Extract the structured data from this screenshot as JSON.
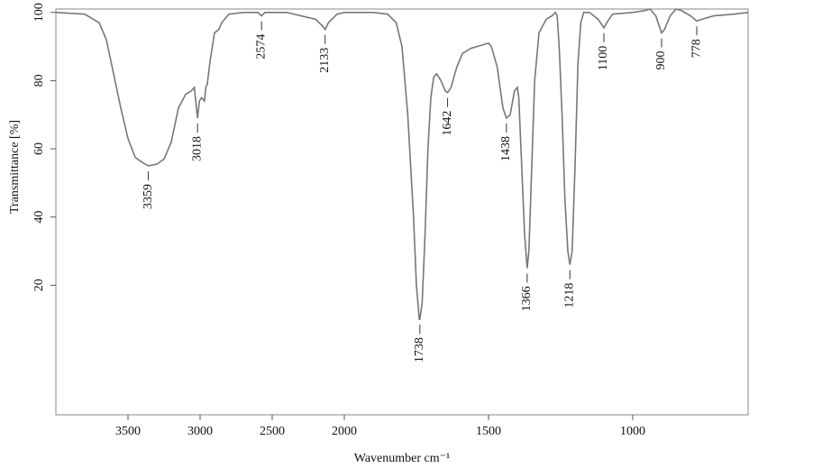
{
  "chart_data": {
    "type": "line",
    "xlabel": "Wavenumber cm⁻¹",
    "ylabel": "Transmittance [%]",
    "xlim": [
      4000,
      600
    ],
    "xscale": {
      "break": 2000,
      "factor_below": 2
    },
    "xticks": [
      3500,
      3000,
      2500,
      2000,
      1500,
      1000
    ],
    "ylim": [
      -18,
      101
    ],
    "yticks": [
      20,
      40,
      60,
      80,
      100
    ],
    "series": [
      {
        "color": "#777777",
        "x": [
          4000,
          3800,
          3700,
          3650,
          3600,
          3550,
          3500,
          3450,
          3400,
          3359,
          3300,
          3250,
          3200,
          3150,
          3100,
          3060,
          3040,
          3030,
          3018,
          3005,
          2990,
          2970,
          2960,
          2950,
          2930,
          2900,
          2870,
          2850,
          2800,
          2700,
          2600,
          2574,
          2550,
          2400,
          2300,
          2200,
          2150,
          2133,
          2110,
          2050,
          2000,
          1900,
          1850,
          1820,
          1800,
          1780,
          1760,
          1750,
          1740,
          1738,
          1730,
          1720,
          1710,
          1700,
          1690,
          1680,
          1665,
          1650,
          1642,
          1630,
          1610,
          1590,
          1560,
          1520,
          1500,
          1490,
          1470,
          1450,
          1438,
          1425,
          1410,
          1400,
          1395,
          1385,
          1375,
          1366,
          1360,
          1350,
          1340,
          1325,
          1300,
          1280,
          1268,
          1262,
          1255,
          1245,
          1235,
          1225,
          1218,
          1210,
          1200,
          1190,
          1180,
          1170,
          1150,
          1120,
          1100,
          1090,
          1070,
          1000,
          960,
          940,
          920,
          900,
          890,
          870,
          850,
          830,
          800,
          778,
          760,
          720,
          650,
          600
        ],
        "values": [
          100,
          99.5,
          97,
          92,
          82,
          72,
          63,
          57.5,
          56,
          55,
          55.5,
          57,
          62,
          72,
          76,
          77,
          78,
          74,
          69,
          74,
          75,
          74,
          78,
          79,
          86,
          94,
          95,
          97,
          99.5,
          100,
          100,
          99,
          100,
          100,
          99,
          98,
          96,
          95,
          97,
          99.5,
          100,
          100,
          99.5,
          97,
          90,
          70,
          40,
          20,
          10,
          10,
          15,
          35,
          60,
          75,
          81,
          82,
          80,
          77,
          76.5,
          78,
          84,
          88,
          89.5,
          90.5,
          91,
          90,
          84,
          72,
          69,
          70,
          77,
          78,
          75,
          55,
          35,
          25,
          30,
          55,
          80,
          94,
          98,
          99,
          100,
          99,
          90,
          70,
          45,
          30,
          26,
          30,
          55,
          85,
          97,
          100,
          100,
          98,
          95.5,
          97,
          99.5,
          100,
          100.5,
          101,
          99,
          94,
          95,
          99,
          101,
          100.5,
          99,
          97.5,
          98,
          99,
          99.5,
          100
        ]
      }
    ],
    "peaks": [
      3359,
      3018,
      2574,
      2133,
      1738,
      1642,
      1438,
      1366,
      1218,
      1100,
      900,
      778
    ]
  }
}
